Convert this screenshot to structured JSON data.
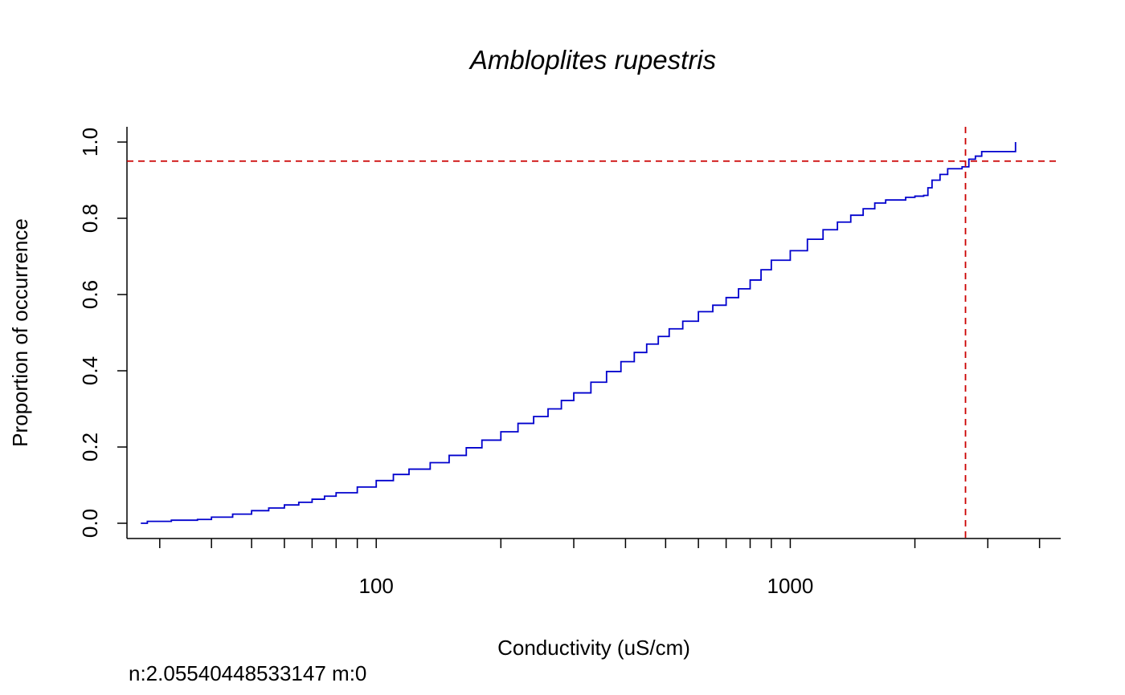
{
  "chart_data": {
    "type": "line",
    "title": "Ambloplites rupestris",
    "xlabel": "Conductivity (uS/cm)",
    "ylabel": "Proportion of occurrence",
    "x_scale": "log",
    "xlim": [
      25,
      4500
    ],
    "ylim": [
      -0.04,
      1.04
    ],
    "x_ticks": [
      30,
      40,
      50,
      60,
      70,
      80,
      90,
      100,
      200,
      300,
      400,
      500,
      600,
      700,
      800,
      900,
      1000,
      2000,
      3000,
      4000
    ],
    "x_tick_labels": [
      {
        "value": 100,
        "label": "100"
      },
      {
        "value": 1000,
        "label": "1000"
      }
    ],
    "y_ticks": [
      {
        "value": 0.0,
        "label": "0.0"
      },
      {
        "value": 0.2,
        "label": "0.2"
      },
      {
        "value": 0.4,
        "label": "0.4"
      },
      {
        "value": 0.6,
        "label": "0.6"
      },
      {
        "value": 0.8,
        "label": "0.8"
      },
      {
        "value": 1.0,
        "label": "1.0"
      }
    ],
    "grid": false,
    "series": [
      {
        "color": "#0000CD",
        "step": true,
        "points": [
          [
            27,
            0.0
          ],
          [
            28,
            0.005
          ],
          [
            32,
            0.008
          ],
          [
            37,
            0.01
          ],
          [
            40,
            0.016
          ],
          [
            45,
            0.024
          ],
          [
            50,
            0.033
          ],
          [
            55,
            0.04
          ],
          [
            60,
            0.048
          ],
          [
            65,
            0.055
          ],
          [
            70,
            0.063
          ],
          [
            75,
            0.071
          ],
          [
            80,
            0.08
          ],
          [
            90,
            0.095
          ],
          [
            100,
            0.112
          ],
          [
            110,
            0.128
          ],
          [
            120,
            0.142
          ],
          [
            135,
            0.159
          ],
          [
            150,
            0.178
          ],
          [
            165,
            0.198
          ],
          [
            180,
            0.218
          ],
          [
            200,
            0.24
          ],
          [
            220,
            0.262
          ],
          [
            240,
            0.28
          ],
          [
            260,
            0.3
          ],
          [
            280,
            0.322
          ],
          [
            300,
            0.342
          ],
          [
            330,
            0.37
          ],
          [
            360,
            0.398
          ],
          [
            390,
            0.424
          ],
          [
            420,
            0.448
          ],
          [
            450,
            0.47
          ],
          [
            480,
            0.49
          ],
          [
            510,
            0.51
          ],
          [
            550,
            0.53
          ],
          [
            600,
            0.555
          ],
          [
            650,
            0.572
          ],
          [
            700,
            0.592
          ],
          [
            750,
            0.615
          ],
          [
            800,
            0.638
          ],
          [
            850,
            0.665
          ],
          [
            900,
            0.69
          ],
          [
            1000,
            0.715
          ],
          [
            1100,
            0.745
          ],
          [
            1200,
            0.77
          ],
          [
            1300,
            0.79
          ],
          [
            1400,
            0.808
          ],
          [
            1500,
            0.825
          ],
          [
            1600,
            0.84
          ],
          [
            1700,
            0.848
          ],
          [
            1900,
            0.855
          ],
          [
            2000,
            0.858
          ],
          [
            2100,
            0.86
          ],
          [
            2150,
            0.88
          ],
          [
            2200,
            0.9
          ],
          [
            2300,
            0.915
          ],
          [
            2400,
            0.93
          ],
          [
            2600,
            0.935
          ],
          [
            2700,
            0.955
          ],
          [
            2800,
            0.963
          ],
          [
            2900,
            0.975
          ],
          [
            3500,
            0.975
          ],
          [
            3500,
            1.0
          ]
        ]
      }
    ],
    "reference_lines": [
      {
        "orientation": "horizontal",
        "value": 0.95,
        "color": "#CC0000",
        "style": "dashed"
      },
      {
        "orientation": "vertical",
        "value": 2650,
        "color": "#CC0000",
        "style": "dashed"
      }
    ]
  },
  "footnote": "n:2.05540448533147 m:0"
}
